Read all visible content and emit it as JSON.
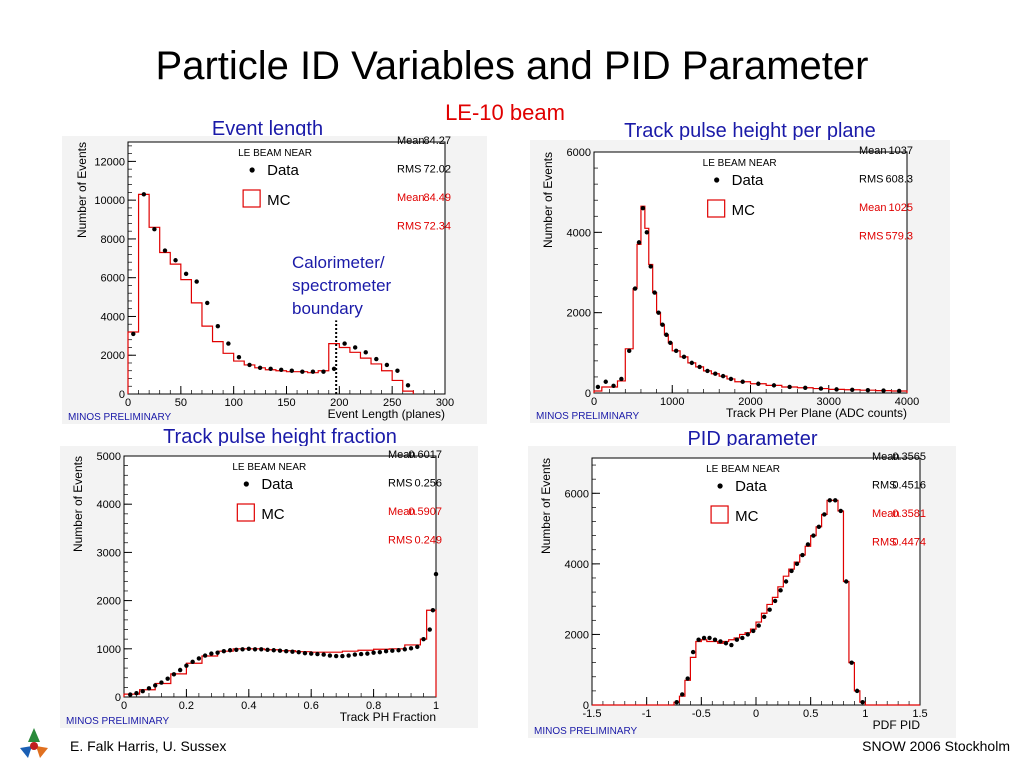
{
  "slide": {
    "title": "Particle ID Variables and PID Parameter",
    "subtitle": "LE-10 beam",
    "footer_left": "E. Falk Harris, U. Sussex",
    "footer_right": "SNOW 2006 Stockholm"
  },
  "colors": {
    "data": "#000000",
    "mc": "#e00000",
    "panel_title": "#1a1aa8"
  },
  "chart_data": [
    {
      "panel_title": "Event length",
      "type": "histogram",
      "tag": "LE  BEAM NEAR",
      "legend": [
        "Data",
        "MC"
      ],
      "stats": {
        "data_label_mean": "Mean",
        "data_mean": "84.27",
        "data_label_rms": "RMS",
        "data_rms": "72.02",
        "mc_label_mean": "Mean",
        "mc_mean": "84.49",
        "mc_label_rms": "RMS",
        "mc_rms": "72.34"
      },
      "xlabel": "Event Length (planes)",
      "ylabel": "Number of Events",
      "xlim": [
        0,
        300
      ],
      "ylim": [
        0,
        13000
      ],
      "xticks": [
        0,
        50,
        100,
        150,
        200,
        250,
        300
      ],
      "yticks": [
        0,
        2000,
        4000,
        6000,
        8000,
        10000,
        12000
      ],
      "preliminary": "MINOS PRELIMINARY",
      "annotation": [
        "Calorimeter/",
        "spectrometer",
        "boundary"
      ],
      "boundary_x": 197,
      "mc_edges": [
        0,
        10,
        20,
        30,
        40,
        50,
        60,
        70,
        80,
        90,
        100,
        110,
        120,
        130,
        140,
        150,
        160,
        170,
        180,
        190,
        200,
        210,
        220,
        230,
        240,
        250,
        260,
        270
      ],
      "mc_values": [
        3200,
        10300,
        8600,
        7300,
        6700,
        5900,
        4700,
        3500,
        2700,
        2100,
        1700,
        1500,
        1350,
        1250,
        1200,
        1150,
        1150,
        1100,
        1200,
        2600,
        2400,
        2150,
        1850,
        1550,
        1200,
        700,
        150
      ],
      "data_x": [
        5,
        15,
        25,
        35,
        45,
        55,
        65,
        75,
        85,
        95,
        105,
        115,
        125,
        135,
        145,
        155,
        165,
        175,
        185,
        195,
        205,
        215,
        225,
        235,
        245,
        255,
        265
      ],
      "data_y": [
        3100,
        10300,
        8500,
        7400,
        6900,
        6200,
        5800,
        4700,
        3500,
        2600,
        1900,
        1500,
        1350,
        1300,
        1250,
        1200,
        1150,
        1150,
        1150,
        1300,
        2600,
        2400,
        2150,
        1800,
        1500,
        1200,
        450
      ]
    },
    {
      "panel_title": "Track pulse height per plane",
      "type": "histogram",
      "tag": "LE  BEAM NEAR",
      "legend": [
        "Data",
        "MC"
      ],
      "stats": {
        "data_label_mean": "Mean",
        "data_mean": "1037",
        "data_label_rms": "RMS",
        "data_rms": "608.3",
        "mc_label_mean": "Mean",
        "mc_mean": "1025",
        "mc_label_rms": "RMS",
        "mc_rms": "579.3"
      },
      "xlabel": "Track PH Per Plane (ADC counts)",
      "ylabel": "Number of Events",
      "xlim": [
        0,
        4000
      ],
      "ylim": [
        0,
        6000
      ],
      "xticks": [
        0,
        1000,
        2000,
        3000,
        4000
      ],
      "yticks": [
        0,
        2000,
        4000,
        6000
      ],
      "preliminary": "MINOS PRELIMINARY",
      "mc_edges": [
        0,
        100,
        200,
        300,
        400,
        500,
        550,
        600,
        650,
        700,
        750,
        800,
        850,
        900,
        950,
        1000,
        1100,
        1200,
        1300,
        1400,
        1500,
        1600,
        1700,
        1800,
        2000,
        2200,
        2400,
        2600,
        2800,
        3000,
        3200,
        3400,
        3600,
        3800,
        4000
      ],
      "mc_values": [
        50,
        150,
        150,
        300,
        1100,
        2600,
        3700,
        4650,
        4100,
        3200,
        2500,
        2000,
        1700,
        1450,
        1250,
        1050,
        900,
        750,
        650,
        550,
        480,
        420,
        350,
        280,
        230,
        190,
        150,
        130,
        110,
        90,
        80,
        70,
        60,
        50
      ],
      "data_x": [
        50,
        150,
        250,
        350,
        450,
        525,
        575,
        625,
        675,
        725,
        775,
        825,
        875,
        925,
        975,
        1050,
        1150,
        1250,
        1350,
        1450,
        1550,
        1650,
        1750,
        1900,
        2100,
        2300,
        2500,
        2700,
        2900,
        3100,
        3300,
        3500,
        3700,
        3900
      ],
      "data_y": [
        150,
        280,
        180,
        350,
        1050,
        2600,
        3750,
        4600,
        4000,
        3150,
        2500,
        2000,
        1700,
        1450,
        1250,
        1050,
        900,
        750,
        650,
        550,
        480,
        420,
        350,
        280,
        230,
        190,
        150,
        130,
        110,
        90,
        80,
        70,
        60,
        50
      ]
    },
    {
      "panel_title": "Track pulse height fraction",
      "type": "histogram",
      "tag": "LE  BEAM NEAR",
      "legend": [
        "Data",
        "MC"
      ],
      "stats": {
        "data_label_mean": "Mean",
        "data_mean": "0.6017",
        "data_label_rms": "RMS",
        "data_rms": "0.256",
        "mc_label_mean": "Mean",
        "mc_mean": "0.5907",
        "mc_label_rms": "RMS",
        "mc_rms": "0.249"
      },
      "xlabel": "Track PH Fraction",
      "ylabel": "Number of Events",
      "xlim": [
        0,
        1
      ],
      "ylim": [
        0,
        5000
      ],
      "xticks": [
        0,
        0.2,
        0.4,
        0.6,
        0.8,
        1
      ],
      "yticks": [
        0,
        1000,
        2000,
        3000,
        4000,
        5000
      ],
      "preliminary": "MINOS PRELIMINARY",
      "mc_edges": [
        0,
        0.05,
        0.1,
        0.15,
        0.2,
        0.25,
        0.3,
        0.35,
        0.4,
        0.45,
        0.5,
        0.55,
        0.6,
        0.65,
        0.7,
        0.75,
        0.8,
        0.85,
        0.9,
        0.95,
        0.97,
        1.0
      ],
      "mc_values": [
        60,
        150,
        280,
        480,
        700,
        850,
        950,
        1000,
        1000,
        980,
        960,
        940,
        930,
        930,
        950,
        970,
        990,
        1000,
        1080,
        1200,
        1800
      ],
      "data_x": [
        0.02,
        0.04,
        0.06,
        0.08,
        0.1,
        0.12,
        0.14,
        0.16,
        0.18,
        0.2,
        0.22,
        0.24,
        0.26,
        0.28,
        0.3,
        0.32,
        0.34,
        0.36,
        0.38,
        0.4,
        0.42,
        0.44,
        0.46,
        0.48,
        0.5,
        0.52,
        0.54,
        0.56,
        0.58,
        0.6,
        0.62,
        0.64,
        0.66,
        0.68,
        0.7,
        0.72,
        0.74,
        0.76,
        0.78,
        0.8,
        0.82,
        0.84,
        0.86,
        0.88,
        0.9,
        0.92,
        0.94,
        0.96,
        0.98,
        0.99,
        1.0
      ],
      "data_y": [
        50,
        80,
        120,
        180,
        240,
        300,
        380,
        470,
        560,
        650,
        730,
        800,
        860,
        900,
        920,
        950,
        970,
        980,
        990,
        1000,
        990,
        990,
        980,
        970,
        960,
        950,
        940,
        930,
        910,
        900,
        890,
        880,
        860,
        850,
        850,
        860,
        880,
        890,
        900,
        920,
        930,
        950,
        960,
        970,
        990,
        1010,
        1040,
        1200,
        1400,
        1800,
        2550
      ]
    },
    {
      "panel_title": "PID parameter",
      "type": "histogram",
      "tag": "LE  BEAM NEAR",
      "legend": [
        "Data",
        "MC"
      ],
      "stats": {
        "data_label_mean": "Mean",
        "data_mean": "0.3565",
        "data_label_rms": "RMS",
        "data_rms": "0.4516",
        "mc_label_mean": "Mean",
        "mc_mean": "0.3581",
        "mc_label_rms": "RMS",
        "mc_rms": "0.4474"
      },
      "xlabel": "PDF PID",
      "ylabel": "Number of Events",
      "xlim": [
        -1.5,
        1.5
      ],
      "ylim": [
        0,
        7000
      ],
      "xticks": [
        -1.5,
        -1,
        -0.5,
        0,
        0.5,
        1,
        1.5
      ],
      "yticks": [
        0,
        2000,
        4000,
        6000
      ],
      "preliminary": "MINOS PRELIMINARY",
      "mc_edges": [
        -1.5,
        -0.75,
        -0.7,
        -0.65,
        -0.6,
        -0.55,
        -0.5,
        -0.45,
        -0.4,
        -0.35,
        -0.3,
        -0.25,
        -0.2,
        -0.15,
        -0.1,
        -0.05,
        0,
        0.05,
        0.1,
        0.15,
        0.2,
        0.25,
        0.3,
        0.35,
        0.4,
        0.45,
        0.5,
        0.55,
        0.6,
        0.65,
        0.7,
        0.75,
        0.8,
        0.85,
        0.9,
        0.95,
        1.0,
        1.5
      ],
      "mc_values": [
        0,
        80,
        250,
        700,
        1350,
        1800,
        1850,
        1800,
        1800,
        1750,
        1800,
        1850,
        1900,
        2000,
        2050,
        2150,
        2350,
        2600,
        2850,
        3050,
        3350,
        3650,
        3850,
        4050,
        4250,
        4500,
        4800,
        5050,
        5400,
        5800,
        5800,
        5500,
        3500,
        1200,
        400,
        80,
        0
      ],
      "data_x": [
        -0.725,
        -0.675,
        -0.625,
        -0.575,
        -0.525,
        -0.475,
        -0.425,
        -0.375,
        -0.325,
        -0.275,
        -0.225,
        -0.175,
        -0.125,
        -0.075,
        -0.025,
        0.025,
        0.075,
        0.125,
        0.175,
        0.225,
        0.275,
        0.325,
        0.375,
        0.425,
        0.475,
        0.525,
        0.575,
        0.625,
        0.675,
        0.725,
        0.775,
        0.825,
        0.875,
        0.925,
        0.975
      ],
      "data_y": [
        80,
        300,
        750,
        1500,
        1850,
        1900,
        1900,
        1850,
        1800,
        1750,
        1700,
        1850,
        1900,
        2000,
        2100,
        2250,
        2500,
        2700,
        2950,
        3250,
        3500,
        3800,
        4000,
        4250,
        4550,
        4800,
        5050,
        5400,
        5800,
        5800,
        5500,
        3500,
        1200,
        400,
        80
      ]
    }
  ]
}
